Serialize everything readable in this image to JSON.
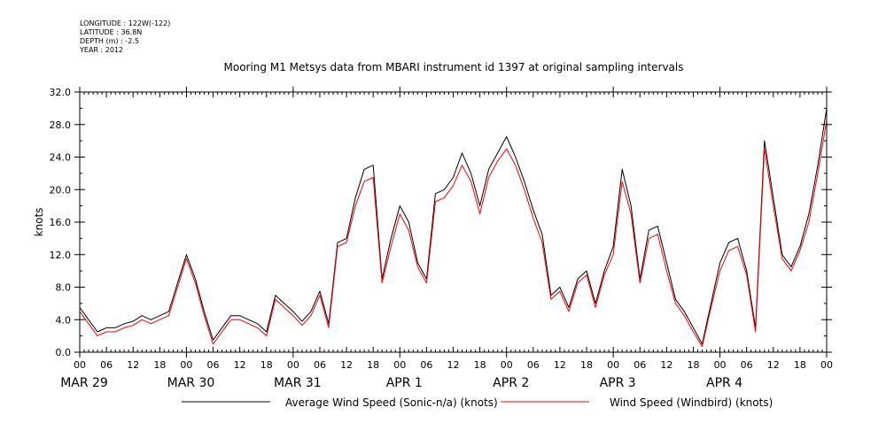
{
  "meta": {
    "longitude": "LONGITUDE : 122W(-122)",
    "latitude": "LATITUDE : 36.8N",
    "depth": "DEPTH (m) : -2.5",
    "year": "YEAR : 2012"
  },
  "chart_data": {
    "type": "line",
    "title": "Mooring M1 Metsys data from MBARI instrument id 1397 at original sampling intervals",
    "xlabel": "",
    "ylabel": "knots",
    "xlim_hours": [
      0,
      168
    ],
    "ylim": [
      0,
      32
    ],
    "yticks": [
      "0.0",
      "4.0",
      "8.0",
      "12.0",
      "16.0",
      "20.0",
      "24.0",
      "28.0",
      "32.0"
    ],
    "hour_ticks": [
      "00",
      "06",
      "12",
      "18",
      "00",
      "06",
      "12",
      "18",
      "00",
      "06",
      "12",
      "18",
      "00",
      "06",
      "12",
      "18",
      "00",
      "06",
      "12",
      "18",
      "00",
      "06",
      "12",
      "18",
      "00",
      "06",
      "12",
      "18",
      "00"
    ],
    "day_labels": [
      "MAR 29",
      "MAR 30",
      "MAR 31",
      "APR  1",
      "APR  2",
      "APR  3",
      "APR  4"
    ],
    "legend": {
      "placement": "bottom"
    },
    "series": [
      {
        "name": "Average Wind Speed (Sonic-n/a) (knots)",
        "color": "#000000",
        "x": [
          0,
          2,
          4,
          6,
          8,
          10,
          12,
          14,
          16,
          18,
          20,
          22,
          24,
          26,
          28,
          30,
          32,
          34,
          36,
          38,
          40,
          42,
          44,
          46,
          48,
          50,
          52,
          54,
          56,
          58,
          60,
          62,
          64,
          66,
          68,
          70,
          72,
          74,
          76,
          78,
          80,
          82,
          84,
          86,
          88,
          90,
          92,
          94,
          96,
          98,
          100,
          102,
          104,
          106,
          108,
          110,
          112,
          114,
          116,
          118,
          120,
          122,
          124,
          126,
          128,
          130,
          132,
          134,
          136,
          138,
          140,
          142,
          144,
          146,
          148,
          150,
          152,
          154,
          156,
          158,
          160,
          162,
          164,
          166,
          168
        ],
        "y": [
          5.5,
          4.0,
          2.5,
          3.0,
          3.0,
          3.5,
          3.8,
          4.5,
          4.0,
          4.5,
          5.0,
          8.5,
          12.0,
          9.0,
          5.0,
          1.5,
          3.0,
          4.5,
          4.5,
          4.0,
          3.5,
          2.5,
          7.0,
          6.0,
          5.0,
          3.8,
          5.0,
          7.5,
          3.5,
          13.5,
          14.0,
          19.0,
          22.5,
          23.0,
          9.0,
          14.0,
          18.0,
          16.0,
          11.0,
          9.0,
          19.5,
          20.0,
          21.5,
          24.5,
          22.0,
          18.0,
          22.5,
          24.5,
          26.5,
          24.0,
          21.0,
          17.5,
          14.5,
          7.0,
          8.0,
          5.5,
          9.0,
          10.0,
          6.0,
          10.0,
          13.0,
          22.5,
          18.0,
          9.0,
          15.0,
          15.5,
          11.0,
          6.5,
          5.0,
          3.0,
          1.0,
          6.0,
          11.0,
          13.5,
          14.0,
          10.0,
          3.0,
          26.0,
          19.0,
          12.0,
          10.5,
          13.0,
          17.0,
          23.0,
          30.0
        ]
      },
      {
        "name": "Wind Speed (Windbird) (knots)",
        "color": "#ff0000",
        "x": [
          0,
          2,
          4,
          6,
          8,
          10,
          12,
          14,
          16,
          18,
          20,
          22,
          24,
          26,
          28,
          30,
          32,
          34,
          36,
          38,
          40,
          42,
          44,
          46,
          48,
          50,
          52,
          54,
          56,
          58,
          60,
          62,
          64,
          66,
          68,
          70,
          72,
          74,
          76,
          78,
          80,
          82,
          84,
          86,
          88,
          90,
          92,
          94,
          96,
          98,
          100,
          102,
          104,
          106,
          108,
          110,
          112,
          114,
          116,
          118,
          120,
          122,
          124,
          126,
          128,
          130,
          132,
          134,
          136,
          138,
          140,
          142,
          144,
          146,
          148,
          150,
          152,
          154,
          156,
          158,
          160,
          162,
          164,
          166,
          168
        ],
        "y": [
          5.0,
          3.5,
          2.0,
          2.5,
          2.5,
          3.0,
          3.3,
          4.0,
          3.5,
          4.0,
          4.5,
          8.0,
          11.5,
          8.5,
          4.5,
          1.0,
          2.5,
          4.0,
          4.0,
          3.5,
          3.0,
          2.0,
          6.5,
          5.5,
          4.5,
          3.3,
          4.5,
          7.0,
          3.0,
          13.0,
          13.5,
          18.0,
          21.0,
          21.5,
          8.5,
          13.0,
          17.0,
          15.0,
          10.5,
          8.5,
          18.5,
          19.0,
          20.5,
          23.0,
          21.0,
          17.0,
          21.5,
          23.5,
          25.0,
          23.0,
          20.0,
          16.5,
          13.5,
          6.5,
          7.5,
          5.0,
          8.5,
          9.5,
          5.5,
          9.5,
          12.0,
          21.0,
          17.0,
          8.5,
          14.0,
          14.5,
          10.0,
          6.0,
          4.5,
          2.5,
          0.7,
          5.5,
          10.0,
          12.5,
          13.0,
          9.5,
          2.5,
          25.0,
          18.0,
          11.5,
          10.0,
          12.5,
          16.0,
          22.0,
          28.5
        ]
      }
    ]
  }
}
